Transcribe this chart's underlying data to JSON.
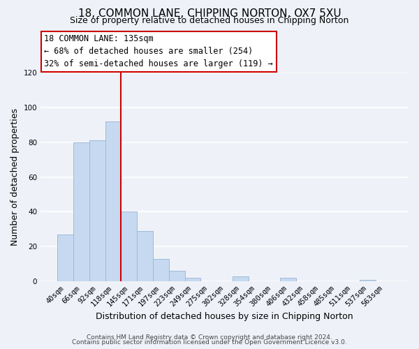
{
  "title": "18, COMMON LANE, CHIPPING NORTON, OX7 5XU",
  "subtitle": "Size of property relative to detached houses in Chipping Norton",
  "xlabel": "Distribution of detached houses by size in Chipping Norton",
  "ylabel": "Number of detached properties",
  "footer_line1": "Contains HM Land Registry data © Crown copyright and database right 2024.",
  "footer_line2": "Contains public sector information licensed under the Open Government Licence v3.0.",
  "categories": [
    "40sqm",
    "66sqm",
    "92sqm",
    "118sqm",
    "145sqm",
    "171sqm",
    "197sqm",
    "223sqm",
    "249sqm",
    "275sqm",
    "302sqm",
    "328sqm",
    "354sqm",
    "380sqm",
    "406sqm",
    "432sqm",
    "458sqm",
    "485sqm",
    "511sqm",
    "537sqm",
    "563sqm"
  ],
  "values": [
    27,
    80,
    81,
    92,
    40,
    29,
    13,
    6,
    2,
    0,
    0,
    3,
    0,
    0,
    2,
    0,
    0,
    0,
    0,
    1,
    0
  ],
  "bar_color": "#c6d9f0",
  "bar_edge_color": "#a0b8d8",
  "reference_line_color": "#cc0000",
  "annotation_box_text": "18 COMMON LANE: 135sqm\n← 68% of detached houses are smaller (254)\n32% of semi-detached houses are larger (119) →",
  "ylim": [
    0,
    120
  ],
  "yticks": [
    0,
    20,
    40,
    60,
    80,
    100,
    120
  ],
  "bg_color": "#eef2f8",
  "grid_color": "#ffffff",
  "title_fontsize": 11,
  "subtitle_fontsize": 9,
  "axis_label_fontsize": 9,
  "tick_fontsize": 7.5,
  "footer_fontsize": 6.5,
  "annot_fontsize": 8.5
}
